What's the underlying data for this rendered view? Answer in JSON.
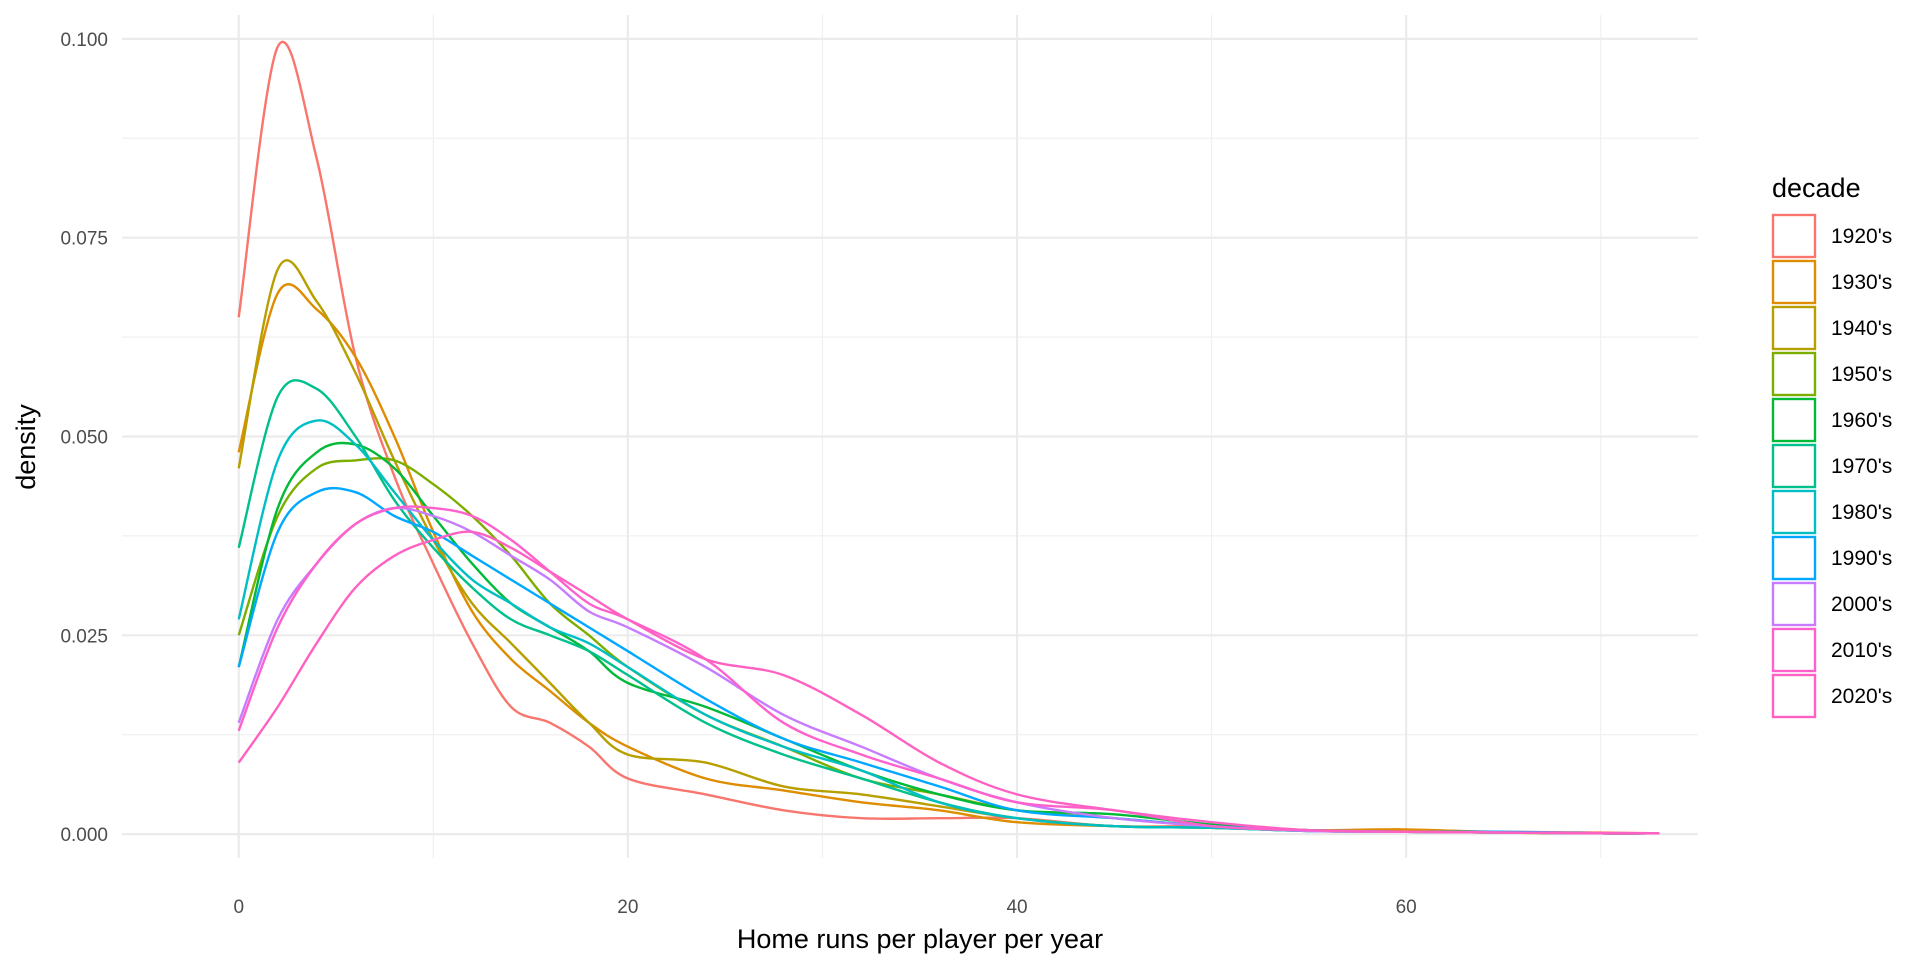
{
  "chart_data": {
    "type": "line",
    "title": "",
    "xlabel": "Home runs per player per year",
    "ylabel": "density",
    "xlim": [
      -6,
      75
    ],
    "ylim": [
      -0.003,
      0.103
    ],
    "x_ticks": [
      0,
      20,
      40,
      60
    ],
    "x_tick_labels": [
      "0",
      "20",
      "40",
      "60"
    ],
    "y_ticks": [
      0,
      0.025,
      0.05,
      0.075,
      0.1
    ],
    "y_tick_labels": [
      "0.000",
      "0.025",
      "0.050",
      "0.075",
      "0.100"
    ],
    "grid": true,
    "legend": {
      "title": "decade",
      "position": "right"
    },
    "x": [
      0,
      2,
      4,
      6,
      8,
      10,
      12,
      14,
      16,
      18,
      20,
      24,
      28,
      32,
      36,
      40,
      45,
      50,
      55,
      60,
      65,
      70,
      73
    ],
    "series": [
      {
        "name": "1920's",
        "color": "#F8766D",
        "values": [
          0.065,
          0.099,
          0.085,
          0.06,
          0.045,
          0.034,
          0.024,
          0.016,
          0.014,
          0.011,
          0.007,
          0.005,
          0.003,
          0.002,
          0.002,
          0.002,
          0.001,
          0.001,
          0.0005,
          0.0005,
          0.0003,
          0.0002,
          0.0001
        ]
      },
      {
        "name": "1930's",
        "color": "#DE8C00",
        "values": [
          0.048,
          0.068,
          0.066,
          0.06,
          0.05,
          0.038,
          0.028,
          0.022,
          0.018,
          0.014,
          0.011,
          0.007,
          0.0055,
          0.004,
          0.003,
          0.0015,
          0.001,
          0.0008,
          0.0005,
          0.0006,
          0.0002,
          0.0001,
          0.0001
        ]
      },
      {
        "name": "1940's",
        "color": "#B79F00",
        "values": [
          0.046,
          0.071,
          0.067,
          0.058,
          0.047,
          0.037,
          0.029,
          0.024,
          0.019,
          0.014,
          0.01,
          0.009,
          0.006,
          0.005,
          0.0035,
          0.002,
          0.001,
          0.0008,
          0.0004,
          0.0003,
          0.0002,
          0.0001,
          0.0001
        ]
      },
      {
        "name": "1950's",
        "color": "#7CAE00",
        "values": [
          0.025,
          0.04,
          0.046,
          0.047,
          0.047,
          0.044,
          0.04,
          0.035,
          0.029,
          0.025,
          0.021,
          0.015,
          0.011,
          0.007,
          0.005,
          0.003,
          0.002,
          0.001,
          0.0005,
          0.0003,
          0.0002,
          0.0001,
          0.0001
        ]
      },
      {
        "name": "1960's",
        "color": "#00BA38",
        "values": [
          0.021,
          0.041,
          0.048,
          0.049,
          0.046,
          0.04,
          0.034,
          0.029,
          0.026,
          0.023,
          0.019,
          0.016,
          0.012,
          0.008,
          0.005,
          0.003,
          0.0025,
          0.0012,
          0.0005,
          0.0003,
          0.0002,
          0.0001,
          0.0001
        ]
      },
      {
        "name": "1970's",
        "color": "#00C08B",
        "values": [
          0.036,
          0.055,
          0.056,
          0.05,
          0.042,
          0.036,
          0.031,
          0.027,
          0.025,
          0.023,
          0.02,
          0.014,
          0.01,
          0.007,
          0.004,
          0.002,
          0.001,
          0.0008,
          0.0004,
          0.0003,
          0.0002,
          0.0001,
          0.0001
        ]
      },
      {
        "name": "1980's",
        "color": "#00BFC4",
        "values": [
          0.027,
          0.047,
          0.052,
          0.049,
          0.043,
          0.037,
          0.032,
          0.029,
          0.026,
          0.024,
          0.021,
          0.015,
          0.011,
          0.008,
          0.004,
          0.002,
          0.001,
          0.0008,
          0.0004,
          0.0003,
          0.0002,
          0.0001,
          0.0001
        ]
      },
      {
        "name": "1990's",
        "color": "#00A9FF",
        "values": [
          0.021,
          0.038,
          0.043,
          0.043,
          0.04,
          0.038,
          0.035,
          0.032,
          0.029,
          0.026,
          0.023,
          0.017,
          0.012,
          0.009,
          0.006,
          0.003,
          0.002,
          0.001,
          0.0005,
          0.0003,
          0.0003,
          0.0001,
          0.0001
        ]
      },
      {
        "name": "2000's",
        "color": "#C77CFF",
        "values": [
          0.014,
          0.027,
          0.034,
          0.039,
          0.041,
          0.04,
          0.038,
          0.035,
          0.032,
          0.028,
          0.026,
          0.021,
          0.015,
          0.011,
          0.007,
          0.004,
          0.002,
          0.001,
          0.0004,
          0.0003,
          0.0002,
          0.0001,
          0.0001
        ]
      },
      {
        "name": "2010's",
        "color": "#FF61CC",
        "values": [
          0.013,
          0.026,
          0.034,
          0.039,
          0.041,
          0.041,
          0.04,
          0.037,
          0.033,
          0.029,
          0.027,
          0.022,
          0.014,
          0.01,
          0.007,
          0.004,
          0.003,
          0.001,
          0.0005,
          0.0003,
          0.0002,
          0.0001,
          0.0001
        ]
      },
      {
        "name": "2020's",
        "color": "#FF61C3",
        "values": [
          0.009,
          0.016,
          0.024,
          0.031,
          0.035,
          0.037,
          0.038,
          0.036,
          0.033,
          0.03,
          0.027,
          0.022,
          0.02,
          0.015,
          0.009,
          0.005,
          0.003,
          0.0015,
          0.0005,
          0.0003,
          0.0002,
          0.0001,
          0.0001
        ]
      }
    ]
  }
}
